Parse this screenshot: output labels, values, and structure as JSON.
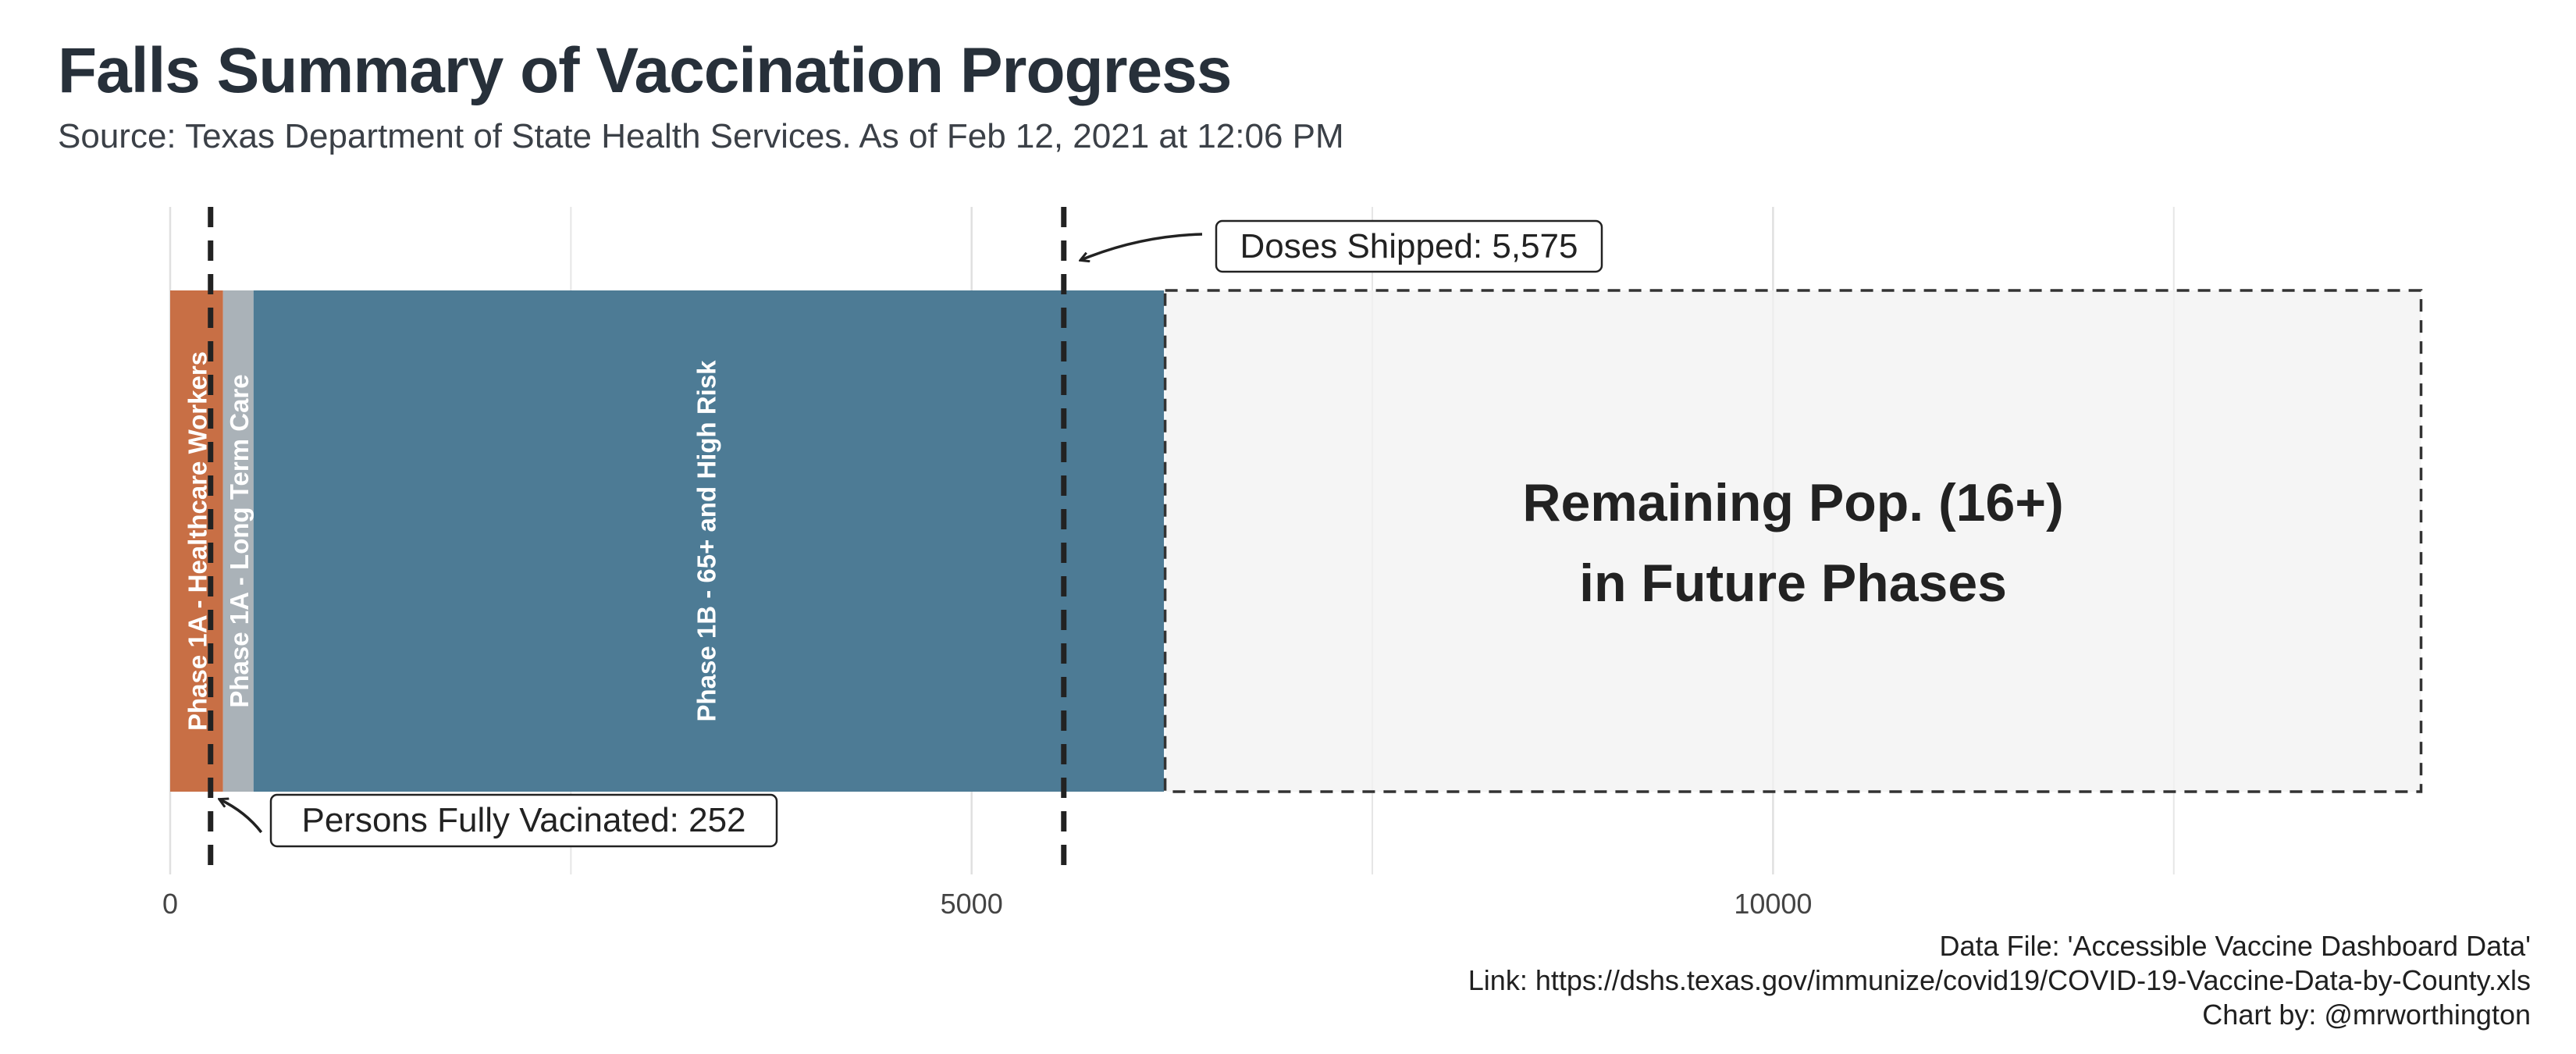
{
  "title": "Falls Summary of Vaccination Progress",
  "subtitle": "Source: Texas Department of State Health Services. As of Feb 12, 2021 at 12:06 PM",
  "caption": {
    "data_file": "Data File: 'Accessible Vaccine Dashboard Data'",
    "link": "Link: https://dshs.texas.gov/immunize/covid19/COVID-19-Vaccine-Data-by-County.xls",
    "chart_by": "Chart by: @mrworthington"
  },
  "colors": {
    "phase_1a_healthcare": "#c86f45",
    "phase_1a_ltc": "#aab2b8",
    "phase_1b": "#4d7b95",
    "remaining": "#f2f2f2",
    "marker": "#222222"
  },
  "chart_data": {
    "type": "bar",
    "orientation": "horizontal-stacked",
    "xlim": [
      0,
      14050
    ],
    "x_ticks": [
      0,
      5000,
      10000
    ],
    "x_tick_labels": [
      "0",
      "5000",
      "10000"
    ],
    "minor_gridlines": [
      2500,
      7500,
      12500
    ],
    "grid": true,
    "segments": [
      {
        "label": "Phase 1A - Healthcare Workers",
        "start": 0,
        "end": 330
      },
      {
        "label": "Phase 1A - Long Term Care",
        "start": 330,
        "end": 520
      },
      {
        "label": "Phase 1B - 65+ and High Risk",
        "start": 520,
        "end": 6200
      },
      {
        "label": "Remaining Pop. (16+)",
        "label2": "in Future Phases",
        "start": 6200,
        "end": 14050,
        "dashed": true
      }
    ],
    "markers": [
      {
        "label": "Persons Fully Vacinated: 252",
        "value": 252
      },
      {
        "label": "Doses Shipped: 5,575",
        "value": 5575
      }
    ]
  }
}
